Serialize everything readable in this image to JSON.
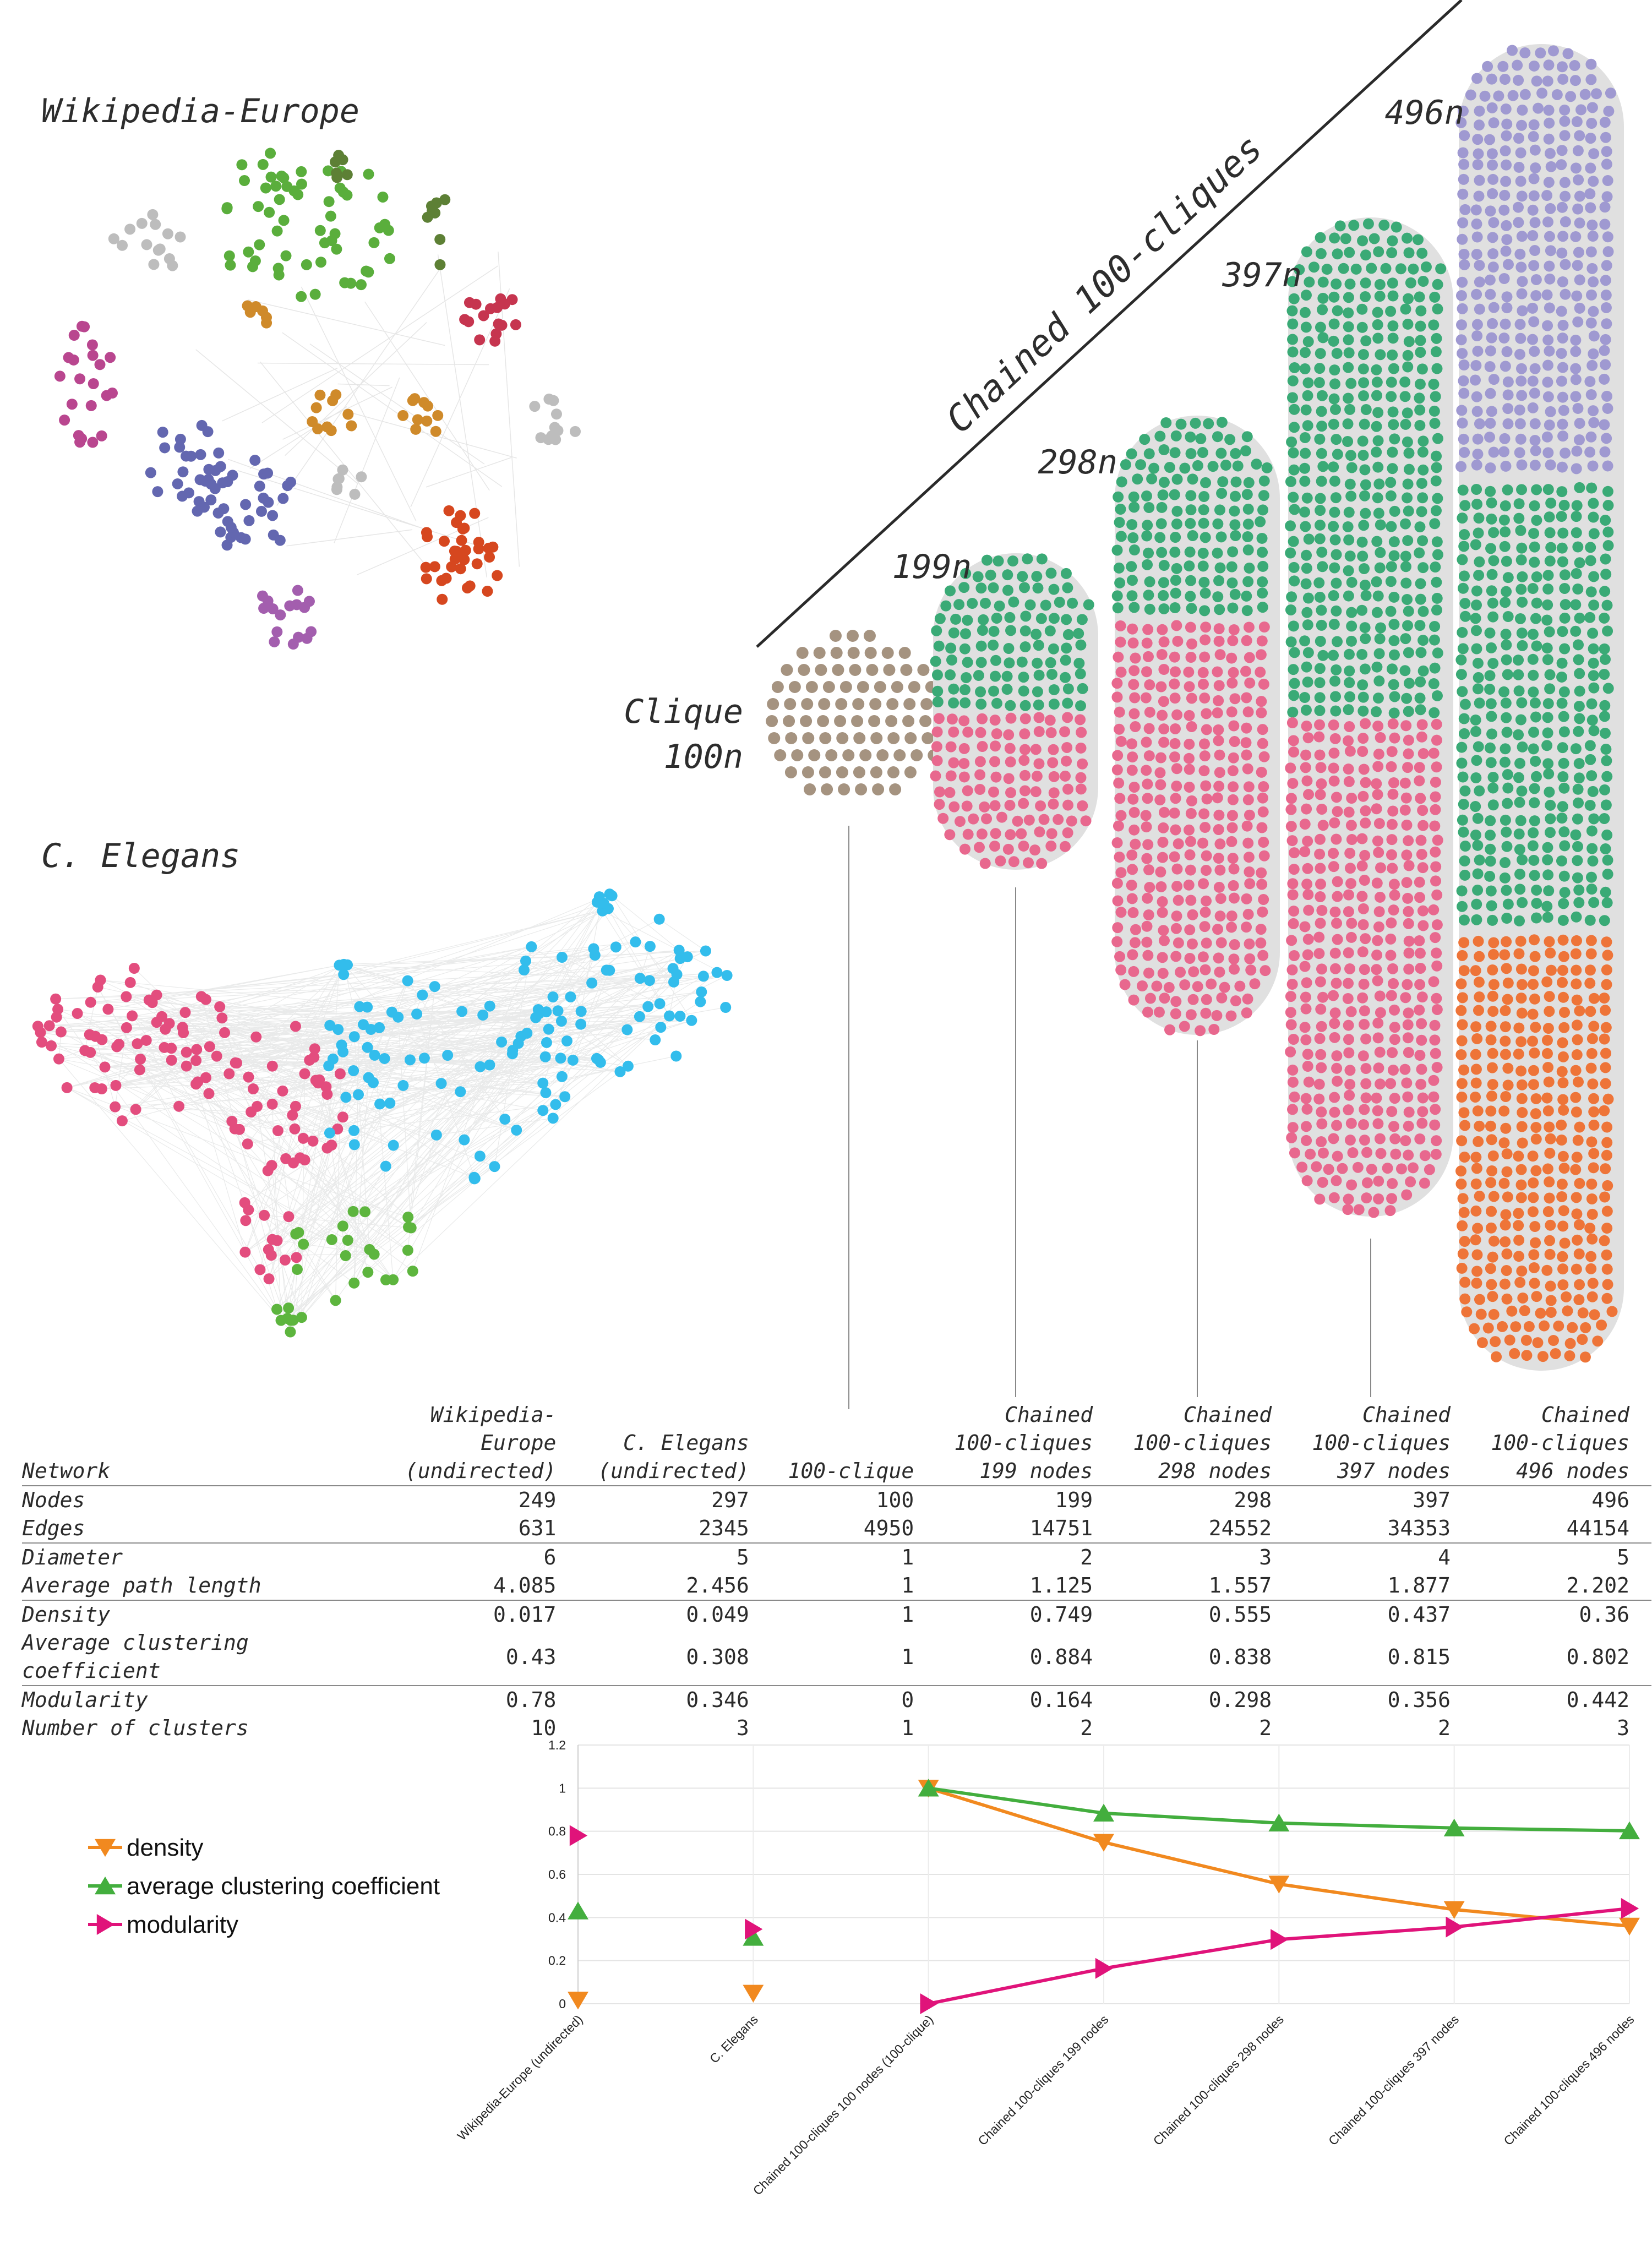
{
  "titles": {
    "wiki": "Wikipedia-Europe",
    "elegans": "C. Elegans",
    "chained": "Chained 100-cliques",
    "clique_top": "Clique",
    "clique_bottom": "100n",
    "n199": "199n",
    "n298": "298n",
    "n397": "397n",
    "n496": "496n"
  },
  "colors": {
    "wiki_green": "#5aae3c",
    "wiki_dark_green": "#5d8035",
    "wiki_grey": "#bdbdbd",
    "wiki_purple": "#6367b0",
    "wiki_magenta": "#b9468f",
    "wiki_red": "#c6354f",
    "wiki_orange": "#cf8a2a",
    "wiki_vermilion": "#d6471f",
    "wiki_violet": "#a35eae",
    "elegans_pink": "#e34d7e",
    "elegans_cyan": "#33bdec",
    "elegans_green": "#5db53e",
    "clique_tan": "#a59380",
    "chain_green": "#3aaa76",
    "chain_pink": "#e8688e",
    "chain_lavender": "#9f99d1",
    "chain_orange": "#ee7438",
    "chain_edges": "#e0e0e0",
    "density": "#f1891f",
    "clustering": "#43ae3e",
    "modularity": "#e0137a"
  },
  "table": {
    "header_label": "Network",
    "columns": [
      [
        "Wikipedia-",
        "Europe",
        "(undirected)"
      ],
      [
        "C. Elegans",
        "(undirected)"
      ],
      [
        "100-clique"
      ],
      [
        "Chained",
        "100-cliques",
        "199 nodes"
      ],
      [
        "Chained",
        "100-cliques",
        "298 nodes"
      ],
      [
        "Chained",
        "100-cliques",
        "397 nodes"
      ],
      [
        "Chained",
        "100-cliques",
        "496 nodes"
      ]
    ],
    "rows": [
      {
        "label": "Nodes",
        "values": [
          "249",
          "297",
          "100",
          "199",
          "298",
          "397",
          "496"
        ],
        "sep": false
      },
      {
        "label": "Edges",
        "values": [
          "631",
          "2345",
          "4950",
          "14751",
          "24552",
          "34353",
          "44154"
        ],
        "sep": false
      },
      {
        "label": "Diameter",
        "values": [
          "6",
          "5",
          "1",
          "2",
          "3",
          "4",
          "5"
        ],
        "sep": true
      },
      {
        "label": "Average path length",
        "values": [
          "4.085",
          "2.456",
          "1",
          "1.125",
          "1.557",
          "1.877",
          "2.202"
        ],
        "sep": false
      },
      {
        "label": "Density",
        "values": [
          "0.017",
          "0.049",
          "1",
          "0.749",
          "0.555",
          "0.437",
          "0.36"
        ],
        "sep": true
      },
      {
        "label": "Average clustering coefficient",
        "values": [
          "0.43",
          "0.308",
          "1",
          "0.884",
          "0.838",
          "0.815",
          "0.802"
        ],
        "sep": false
      },
      {
        "label": "Modularity",
        "values": [
          "0.78",
          "0.346",
          "0",
          "0.164",
          "0.298",
          "0.356",
          "0.442"
        ],
        "sep": true
      },
      {
        "label": "Number of clusters",
        "values": [
          "10",
          "3",
          "1",
          "2",
          "2",
          "2",
          "3"
        ],
        "sep": false
      }
    ]
  },
  "chart_data": {
    "type": "line",
    "categories": [
      "Wikipedia-Europe (undirected)",
      "C. Elegans",
      "Chained 100-cliques 100 nodes (100-clique)",
      "Chained 100-cliques 199 nodes",
      "Chained 100-cliques 298 nodes",
      "Chained 100-cliques 397 nodes",
      "Chained 100-cliques 496 nodes"
    ],
    "connect_from_index": 2,
    "series": [
      {
        "name": "density",
        "marker": "triangle-down",
        "color": "#f1891f",
        "values": [
          0.017,
          0.049,
          1,
          0.749,
          0.555,
          0.437,
          0.36
        ]
      },
      {
        "name": "average clustering coefficient",
        "marker": "triangle-up",
        "color": "#43ae3e",
        "values": [
          0.43,
          0.308,
          1,
          0.884,
          0.838,
          0.815,
          0.802
        ]
      },
      {
        "name": "modularity",
        "marker": "triangle-right",
        "color": "#e0137a",
        "values": [
          0.78,
          0.346,
          0,
          0.164,
          0.298,
          0.356,
          0.442
        ]
      }
    ],
    "ylim": [
      0,
      1.2
    ],
    "yticks": [
      "0",
      "0.2",
      "0.4",
      "0.6",
      "0.8",
      "1",
      "1.2"
    ],
    "grid": true,
    "legend_position": "left"
  }
}
